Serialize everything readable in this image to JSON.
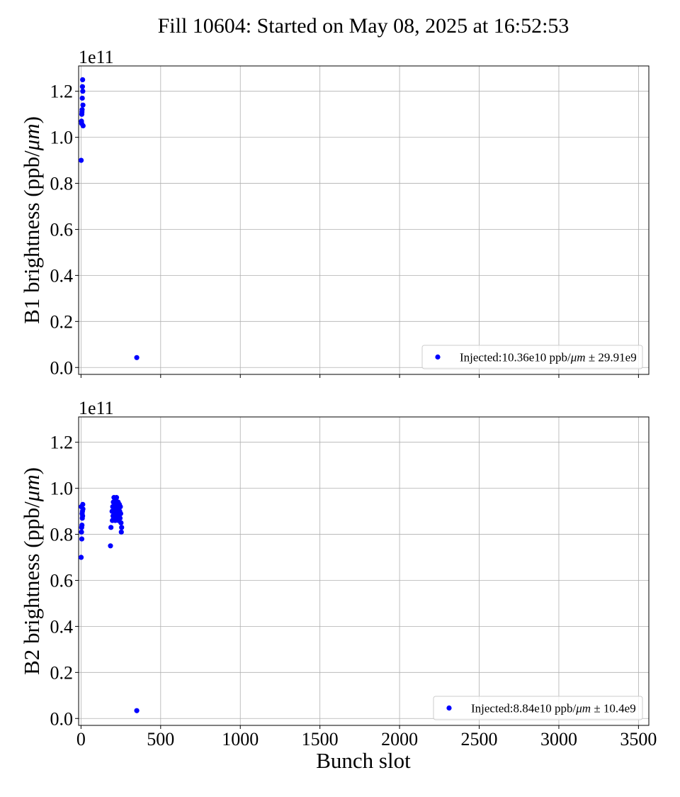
{
  "figure": {
    "title": "Fill 10604: Started on May 08, 2025 at 16:52:53",
    "xlabel": "Bunch slot"
  },
  "colors": {
    "marker": "#0000ff",
    "grid": "#b0b0b0",
    "axes": "#000000"
  },
  "chart_data": [
    {
      "type": "scatter",
      "ylabel": "B1 brightness (ppb/μm)",
      "offset_label": "1e11",
      "xlim": [
        -15,
        3565
      ],
      "ylim": [
        -3000000000.0,
        131000000000.0
      ],
      "x_ticks": [
        0,
        500,
        1000,
        1500,
        2000,
        2500,
        3000,
        3500
      ],
      "x_tick_labels": [
        "0",
        "500",
        "1000",
        "1500",
        "2000",
        "2500",
        "3000",
        "3500"
      ],
      "y_ticks": [
        0,
        20000000000.0,
        40000000000.0,
        60000000000.0,
        80000000000.0,
        100000000000.0,
        120000000000.0
      ],
      "y_tick_labels": [
        "0.0",
        "0.2",
        "0.4",
        "0.6",
        "0.8",
        "1.0",
        "1.2"
      ],
      "grid": true,
      "legend_position": "lower-right",
      "series": [
        {
          "name": "Injected:10.36e10 ppb/μm ± 29.91e9",
          "x": [
            1,
            3,
            4,
            5,
            6,
            7,
            8,
            9,
            10,
            11,
            12,
            13,
            350
          ],
          "y": [
            90000000000.0,
            107000000000.0,
            106000000000.0,
            110000000000.0,
            111000000000.0,
            112000000000.0,
            117000000000.0,
            122000000000.0,
            125000000000.0,
            120000000000.0,
            114000000000.0,
            105000000000.0,
            4300000000.0
          ]
        }
      ]
    },
    {
      "type": "scatter",
      "ylabel": "B2 brightness (ppb/μm)",
      "offset_label": "1e11",
      "xlim": [
        -15,
        3565
      ],
      "ylim": [
        -3000000000.0,
        131000000000.0
      ],
      "x_ticks": [
        0,
        500,
        1000,
        1500,
        2000,
        2500,
        3000,
        3500
      ],
      "x_tick_labels": [
        "0",
        "500",
        "1000",
        "1500",
        "2000",
        "2500",
        "3000",
        "3500"
      ],
      "y_ticks": [
        0,
        20000000000.0,
        40000000000.0,
        60000000000.0,
        80000000000.0,
        100000000000.0,
        120000000000.0
      ],
      "y_tick_labels": [
        "0.0",
        "0.2",
        "0.4",
        "0.6",
        "0.8",
        "1.0",
        "1.2"
      ],
      "grid": true,
      "legend_position": "lower-right",
      "series": [
        {
          "name": "Injected:8.84e10 ppb/μm ± 10.4e9",
          "x": [
            1,
            2,
            3,
            4,
            5,
            6,
            7,
            8,
            9,
            10,
            11,
            12,
            185,
            188,
            195,
            197,
            199,
            201,
            203,
            205,
            207,
            209,
            211,
            213,
            215,
            217,
            219,
            221,
            223,
            225,
            227,
            229,
            231,
            233,
            235,
            237,
            239,
            241,
            243,
            245,
            247,
            249,
            251,
            253,
            255,
            350
          ],
          "y": [
            70000000000.0,
            92000000000.0,
            81000000000.0,
            83000000000.0,
            78000000000.0,
            84000000000.0,
            89000000000.0,
            87000000000.0,
            90000000000.0,
            88000000000.0,
            93000000000.0,
            91000000000.0,
            75000000000.0,
            83000000000.0,
            90000000000.0,
            86000000000.0,
            92000000000.0,
            88000000000.0,
            94000000000.0,
            87000000000.0,
            96000000000.0,
            89000000000.0,
            91000000000.0,
            93000000000.0,
            86000000000.0,
            95000000000.0,
            88000000000.0,
            92000000000.0,
            96000000000.0,
            90000000000.0,
            87000000000.0,
            93000000000.0,
            89000000000.0,
            94000000000.0,
            86000000000.0,
            91000000000.0,
            88000000000.0,
            93000000000.0,
            90000000000.0,
            87000000000.0,
            92000000000.0,
            89000000000.0,
            85000000000.0,
            81000000000.0,
            83000000000.0,
            3400000000.0
          ]
        }
      ]
    }
  ]
}
